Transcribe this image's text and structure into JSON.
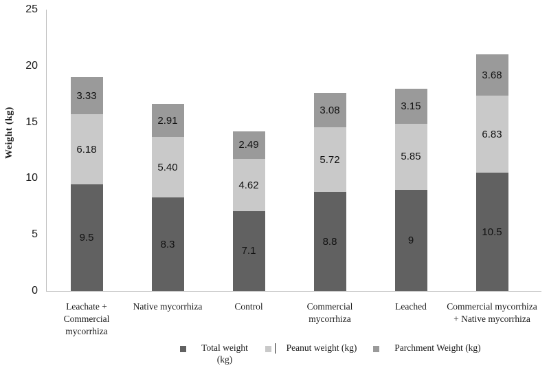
{
  "chart_data": {
    "type": "bar",
    "subtype": "stacked-vertical",
    "title": "",
    "xlabel": "",
    "ylabel": "Weight (kg)",
    "ylim": [
      0,
      25
    ],
    "yticks": [
      "0",
      "5",
      "10",
      "15",
      "20",
      "25"
    ],
    "grid": false,
    "legend_position": "bottom",
    "categories": [
      "Leachate +\nCommercial\nmycorrhiza",
      "Native mycorrhiza",
      "Control",
      "Commercial\nmycorrhiza",
      "Leached",
      "Commercial mycorrhiza\n+ Native mycorrhiza"
    ],
    "series": [
      {
        "name": "Total weight (kg)",
        "legend_label": "Total weight\n(kg)",
        "color": "#616161",
        "values": [
          9.5,
          8.3,
          7.1,
          8.8,
          9,
          10.5
        ],
        "labels": [
          "9.5",
          "8.3",
          "7.1",
          "8.8",
          "9",
          "10.5"
        ]
      },
      {
        "name": "Peanut weight (kg)",
        "legend_label": "Peanut weight (kg)",
        "color": "#c9c9c9",
        "values": [
          6.18,
          5.4,
          4.62,
          5.72,
          5.85,
          6.83
        ],
        "labels": [
          "6.18",
          "5.40",
          "4.62",
          "5.72",
          "5.85",
          "6.83"
        ]
      },
      {
        "name": "Parchment Weight (kg)",
        "legend_label": "Parchment Weight (kg)",
        "color": "#9a9a9a",
        "values": [
          3.33,
          2.91,
          2.49,
          3.08,
          3.15,
          3.68
        ],
        "labels": [
          "3.33",
          "2.91",
          "2.49",
          "3.08",
          "3.15",
          "3.68"
        ]
      }
    ],
    "legend_caret": "|",
    "colors": {
      "axis_line": "#bfbfbf",
      "text": "#1a1a1a",
      "background": "#ffffff"
    }
  }
}
